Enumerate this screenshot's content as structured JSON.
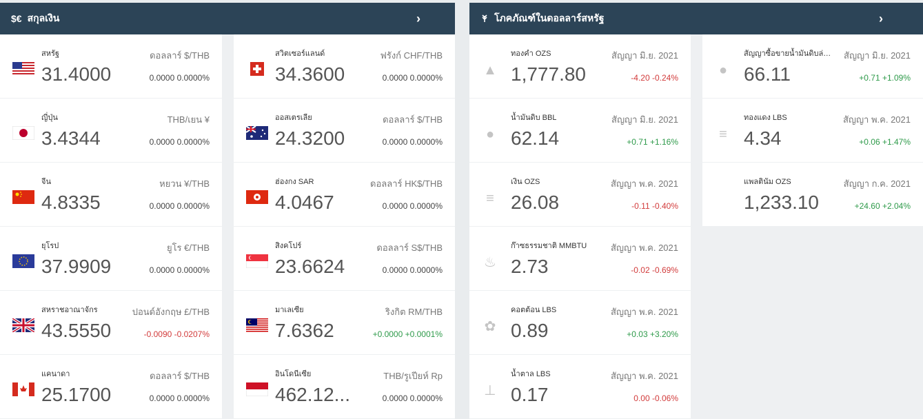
{
  "currency": {
    "header_icon": "$€",
    "title": "สกุลเงิน",
    "chevron": "›",
    "items": [
      {
        "name": "สหรัฐ",
        "value": "31.4000",
        "pair": "ดอลลาร์ $/THB",
        "change": "0.0000 0.0000%",
        "trend": "flat",
        "flag": "us-flag-icon"
      },
      {
        "name": "สวิตเซอร์แลนด์",
        "value": "34.3600",
        "pair": "ฟรังก์ CHF/THB",
        "change": "0.0000 0.0000%",
        "trend": "flat",
        "flag": "ch-flag-icon"
      },
      {
        "name": "ญี่ปุ่น",
        "value": "3.4344",
        "pair": "THB/เยน ¥",
        "change": "0.0000 0.0000%",
        "trend": "flat",
        "flag": "jp-flag-icon"
      },
      {
        "name": "ออสเตรเลีย",
        "value": "24.3200",
        "pair": "ดอลลาร์ $/THB",
        "change": "0.0000 0.0000%",
        "trend": "flat",
        "flag": "au-flag-icon"
      },
      {
        "name": "จีน",
        "value": "4.8335",
        "pair": "หยวน ¥/THB",
        "change": "0.0000 0.0000%",
        "trend": "flat",
        "flag": "cn-flag-icon"
      },
      {
        "name": "ฮ่องกง SAR",
        "value": "4.0467",
        "pair": "ดอลลาร์ HK$/THB",
        "change": "0.0000 0.0000%",
        "trend": "flat",
        "flag": "hk-flag-icon"
      },
      {
        "name": "ยุโรป",
        "value": "37.9909",
        "pair": "ยูโร €/THB",
        "change": "0.0000 0.0000%",
        "trend": "flat",
        "flag": "eu-flag-icon"
      },
      {
        "name": "สิงคโปร์",
        "value": "23.6624",
        "pair": "ดอลลาร์ S$/THB",
        "change": "0.0000 0.0000%",
        "trend": "flat",
        "flag": "sg-flag-icon"
      },
      {
        "name": "สหราชอาณาจักร",
        "value": "43.5550",
        "pair": "ปอนด์อังกฤษ £/THB",
        "change": "-0.0090 -0.0207%",
        "trend": "neg",
        "flag": "uk-flag-icon"
      },
      {
        "name": "มาเลเซีย",
        "value": "7.6362",
        "pair": "ริงกิต RM/THB",
        "change": "+0.0000 +0.0001%",
        "trend": "pos",
        "flag": "my-flag-icon"
      },
      {
        "name": "แคนาดา",
        "value": "25.1700",
        "pair": "ดอลลาร์ $/THB",
        "change": "0.0000 0.0000%",
        "trend": "flat",
        "flag": "ca-flag-icon"
      },
      {
        "name": "อินโดนีเซีย",
        "value": "462.12...",
        "pair": "THB/รูเปียห์ Rp",
        "change": "0.0000 0.0000%",
        "trend": "flat",
        "flag": "id-flag-icon"
      }
    ]
  },
  "commodity": {
    "header_icon": "wheat-icon",
    "title": "โภคภัณฑ์ในดอลลาร์สหรัฐ",
    "chevron": "›",
    "items": [
      {
        "name": "ทองคำ OZS",
        "value": "1,777.80",
        "contract": "สัญญา มิ.ย. 2021",
        "change": "-4.20 -0.24%",
        "trend": "neg",
        "icon": "gold-bars-icon",
        "glyph": "▲",
        "col": 0,
        "row": 0
      },
      {
        "name": "สัญญาซื้อขายน้ำมันดิบล่วงหน้า",
        "value": "66.11",
        "contract": "สัญญา มิ.ย. 2021",
        "change": "+0.71 +1.09%",
        "trend": "pos",
        "icon": "oil-drop-icon",
        "glyph": "●",
        "col": 1,
        "row": 0
      },
      {
        "name": "น้ำมันดิบ BBL",
        "value": "62.14",
        "contract": "สัญญา มิ.ย. 2021",
        "change": "+0.71 +1.16%",
        "trend": "pos",
        "icon": "oil-drop-icon",
        "glyph": "●",
        "col": 0,
        "row": 1
      },
      {
        "name": "ทองแดง LBS",
        "value": "4.34",
        "contract": "สัญญา พ.ค. 2021",
        "change": "+0.06 +1.47%",
        "trend": "pos",
        "icon": "coin-stack-icon",
        "glyph": "≡",
        "col": 1,
        "row": 1
      },
      {
        "name": "เงิน OZS",
        "value": "26.08",
        "contract": "สัญญา พ.ค. 2021",
        "change": "-0.11 -0.40%",
        "trend": "neg",
        "icon": "coin-stack-icon",
        "glyph": "≡",
        "col": 0,
        "row": 2
      },
      {
        "name": "แพลตินัม OZS",
        "value": "1,233.10",
        "contract": "สัญญา ก.ค. 2021",
        "change": "+24.60 +2.04%",
        "trend": "pos",
        "icon": "",
        "glyph": "",
        "col": 1,
        "row": 2
      },
      {
        "name": "ก๊าซธรรมชาติ MMBTU",
        "value": "2.73",
        "contract": "สัญญา พ.ค. 2021",
        "change": "-0.02 -0.69%",
        "trend": "neg",
        "icon": "flame-icon",
        "glyph": "♨",
        "col": 0,
        "row": 3
      },
      {
        "name": "คอตต้อน LBS",
        "value": "0.89",
        "contract": "สัญญา พ.ค. 2021",
        "change": "+0.03 +3.20%",
        "trend": "pos",
        "icon": "cotton-icon",
        "glyph": "✿",
        "col": 0,
        "row": 4
      },
      {
        "name": "น้ำตาล LBS",
        "value": "0.17",
        "contract": "สัญญา พ.ค. 2021",
        "change": "0.00 -0.06%",
        "trend": "neg",
        "icon": "sugar-icon",
        "glyph": "⊥",
        "col": 0,
        "row": 5
      }
    ]
  },
  "colors": {
    "header_bg": "#2c4457",
    "negative": "#d23b3b",
    "positive": "#2e9a4a"
  }
}
